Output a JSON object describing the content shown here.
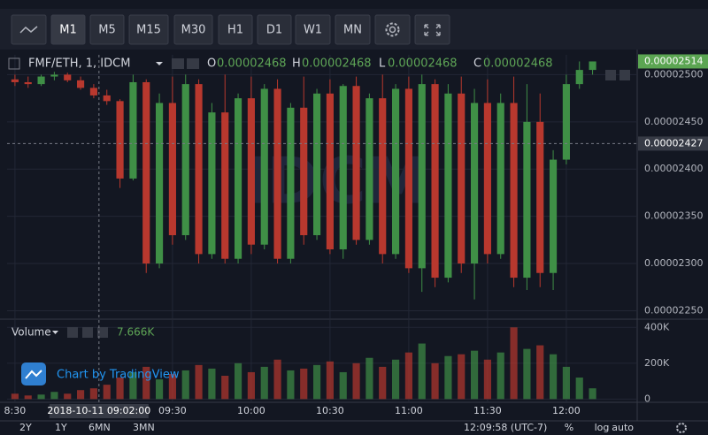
{
  "toolbar": {
    "buttons": [
      "M1",
      "M5",
      "M15",
      "M30",
      "H1",
      "D1",
      "W1",
      "MN"
    ]
  },
  "legend": {
    "symbol": "FMF/ETH, 1, IDCM",
    "open_key": "O",
    "open": "0.00002468",
    "high_key": "H",
    "high": "0.00002468",
    "low_key": "L",
    "low": "0.00002468",
    "close_key": "C",
    "close": "0.00002468"
  },
  "volume_legend": {
    "name": "Volume",
    "value": "7.666K"
  },
  "watermark": "IDCM",
  "branding": "Chart by TradingView",
  "crosshair": {
    "time": "2018-10-11 09:02:00",
    "price": "0.00002427"
  },
  "last_price": "0.00002514",
  "range_buttons": [
    "2Y",
    "1Y",
    "6MN",
    "3MN"
  ],
  "clock": "12:09:58 (UTC-7)",
  "scale_buttons": [
    "%",
    "log",
    "auto"
  ],
  "chart_data": {
    "type": "candlestick",
    "x": [
      "08:30",
      "08:35",
      "08:40",
      "08:45",
      "08:50",
      "08:55",
      "09:00",
      "09:05",
      "09:10",
      "09:15",
      "09:20",
      "09:25",
      "09:30",
      "09:35",
      "09:40",
      "09:45",
      "09:50",
      "09:55",
      "10:00",
      "10:05",
      "10:10",
      "10:15",
      "10:20",
      "10:25",
      "10:30",
      "10:35",
      "10:40",
      "10:45",
      "10:50",
      "10:55",
      "11:00",
      "11:05",
      "11:10",
      "11:15",
      "11:20",
      "11:25",
      "11:30",
      "11:35",
      "11:40",
      "11:45",
      "11:50",
      "11:55",
      "12:00",
      "12:05",
      "12:10"
    ],
    "open": [
      2.495e-05,
      2.492e-05,
      2.49e-05,
      2.498e-05,
      2.5e-05,
      2.494e-05,
      2.486e-05,
      2.478e-05,
      2.472e-05,
      2.39e-05,
      2.492e-05,
      2.3e-05,
      2.47e-05,
      2.33e-05,
      2.49e-05,
      2.31e-05,
      2.46e-05,
      2.305e-05,
      2.475e-05,
      2.32e-05,
      2.485e-05,
      2.305e-05,
      2.465e-05,
      2.33e-05,
      2.48e-05,
      2.315e-05,
      2.488e-05,
      2.325e-05,
      2.475e-05,
      2.31e-05,
      2.485e-05,
      2.295e-05,
      2.49e-05,
      2.285e-05,
      2.48e-05,
      2.3e-05,
      2.47e-05,
      2.31e-05,
      2.47e-05,
      2.285e-05,
      2.45e-05,
      2.29e-05,
      2.41e-05,
      2.49e-05,
      2.505e-05
    ],
    "high": [
      2.5e-05,
      2.498e-05,
      2.5e-05,
      2.503e-05,
      2.502e-05,
      2.498e-05,
      2.49e-05,
      2.484e-05,
      2.474e-05,
      2.5e-05,
      2.495e-05,
      2.48e-05,
      2.498e-05,
      2.5e-05,
      2.495e-05,
      2.47e-05,
      2.5e-05,
      2.48e-05,
      2.498e-05,
      2.49e-05,
      2.495e-05,
      2.47e-05,
      2.498e-05,
      2.485e-05,
      2.495e-05,
      2.49e-05,
      2.498e-05,
      2.48e-05,
      2.5e-05,
      2.49e-05,
      2.498e-05,
      2.5e-05,
      2.495e-05,
      2.49e-05,
      2.498e-05,
      2.485e-05,
      2.495e-05,
      2.48e-05,
      2.498e-05,
      2.49e-05,
      2.48e-05,
      2.42e-05,
      2.5e-05,
      2.514e-05,
      2.514e-05
    ],
    "low": [
      2.488e-05,
      2.486e-05,
      2.488e-05,
      2.494e-05,
      2.492e-05,
      2.484e-05,
      2.475e-05,
      2.468e-05,
      2.38e-05,
      2.388e-05,
      2.29e-05,
      2.295e-05,
      2.32e-05,
      2.325e-05,
      2.3e-05,
      2.305e-05,
      2.3e-05,
      2.3e-05,
      2.31e-05,
      2.315e-05,
      2.3e-05,
      2.3e-05,
      2.32e-05,
      2.325e-05,
      2.31e-05,
      2.305e-05,
      2.32e-05,
      2.32e-05,
      2.3e-05,
      2.305e-05,
      2.29e-05,
      2.27e-05,
      2.275e-05,
      2.28e-05,
      2.29e-05,
      2.262e-05,
      2.3e-05,
      2.305e-05,
      2.275e-05,
      2.272e-05,
      2.275e-05,
      2.272e-05,
      2.405e-05,
      2.485e-05,
      2.5e-05
    ],
    "close": [
      2.492e-05,
      2.49e-05,
      2.498e-05,
      2.5e-05,
      2.494e-05,
      2.486e-05,
      2.478e-05,
      2.472e-05,
      2.39e-05,
      2.492e-05,
      2.3e-05,
      2.47e-05,
      2.33e-05,
      2.49e-05,
      2.31e-05,
      2.46e-05,
      2.305e-05,
      2.475e-05,
      2.32e-05,
      2.485e-05,
      2.305e-05,
      2.465e-05,
      2.33e-05,
      2.48e-05,
      2.315e-05,
      2.488e-05,
      2.325e-05,
      2.475e-05,
      2.31e-05,
      2.485e-05,
      2.295e-05,
      2.49e-05,
      2.285e-05,
      2.48e-05,
      2.3e-05,
      2.47e-05,
      2.31e-05,
      2.47e-05,
      2.285e-05,
      2.45e-05,
      2.29e-05,
      2.41e-05,
      2.49e-05,
      2.505e-05,
      2.514e-05
    ],
    "volume": [
      30000,
      20000,
      25000,
      40000,
      30000,
      50000,
      60000,
      80000,
      120000,
      150000,
      180000,
      110000,
      140000,
      160000,
      190000,
      170000,
      130000,
      200000,
      150000,
      180000,
      220000,
      160000,
      170000,
      190000,
      210000,
      150000,
      200000,
      230000,
      180000,
      220000,
      260000,
      310000,
      200000,
      240000,
      250000,
      270000,
      220000,
      260000,
      400000,
      280000,
      300000,
      250000,
      180000,
      120000,
      60000
    ],
    "up_color": "#3f8f46",
    "down_color": "#b8382e",
    "xlim": [
      "08:27",
      "12:27"
    ],
    "xticks": [
      "8:30",
      "09:30",
      "10:00",
      "10:30",
      "11:00",
      "11:30",
      "12:00"
    ],
    "ylim": [
      2.242e-05,
      2.521e-05
    ],
    "yticks": [
      {
        "value": 2.5e-05,
        "label": "0.00002500"
      },
      {
        "value": 2.45e-05,
        "label": "0.00002450"
      },
      {
        "value": 2.4e-05,
        "label": "0.00002400"
      },
      {
        "value": 2.35e-05,
        "label": "0.00002350"
      },
      {
        "value": 2.3e-05,
        "label": "0.00002300"
      },
      {
        "value": 2.25e-05,
        "label": "0.00002250"
      }
    ],
    "volume_ylim": [
      -18000,
      441000
    ],
    "volume_yticks": [
      0,
      {
        "value": 200000,
        "label": "200K"
      },
      {
        "value": 400000,
        "label": "400K"
      }
    ],
    "grid": true
  }
}
